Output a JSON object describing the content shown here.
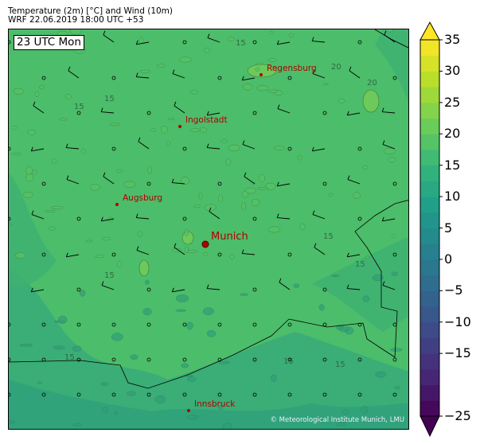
{
  "header": {
    "title": "Temperature (2m) [°C] and Wind (10m)",
    "subtitle": "WRF 22.06.2019 18:00 UTC +53"
  },
  "map": {
    "time_label": "23 UTC Mon",
    "credit": "© Meteorological Institute Munich, LMU",
    "cities": [
      {
        "name": "Regensburg"
      },
      {
        "name": "Ingolstadt"
      },
      {
        "name": "Augsburg"
      },
      {
        "name": "Munich"
      },
      {
        "name": "Innsbruck"
      }
    ],
    "contour_labels": [
      "15",
      "15",
      "15",
      "15",
      "20",
      "20",
      "15",
      "15",
      "15",
      "15",
      "15",
      "15"
    ],
    "colors": {
      "city": "#b00000",
      "background": "#4cbd6a",
      "border": "#000000"
    }
  },
  "colorbar": {
    "unit": "°C",
    "min": -25,
    "max": 35,
    "step": 2.5,
    "extend": "both",
    "colormap": "viridis",
    "ticks": [
      "35",
      "30",
      "25",
      "20",
      "15",
      "10",
      "5",
      "0",
      "−5",
      "−10",
      "−15",
      "−25"
    ]
  }
}
